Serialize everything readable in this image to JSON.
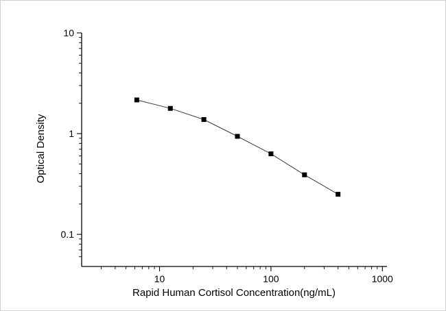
{
  "figure": {
    "background_color": "#ffffff",
    "frame_color": "#cfcfcf"
  },
  "chart_data": {
    "type": "line",
    "title": "",
    "xlabel": "Rapid Human Cortisol Concentration(ng/mL)",
    "ylabel": "Optical Density",
    "xscale": "log",
    "yscale": "log",
    "x": [
      6.25,
      12.5,
      25,
      50,
      100,
      200,
      400
    ],
    "y": [
      2.16,
      1.78,
      1.38,
      0.94,
      0.63,
      0.39,
      0.25
    ],
    "xlim": [
      2,
      1100
    ],
    "ylim": [
      0.048,
      10
    ],
    "x_tick_labels": [
      "10",
      "100",
      "1000"
    ],
    "x_tick_values": [
      10,
      100,
      1000
    ],
    "y_tick_labels": [
      "0.1",
      "1",
      "10"
    ],
    "y_tick_values": [
      0.1,
      1,
      10
    ],
    "marker": "square",
    "marker_color": "#000000",
    "line_color": "#3a3a3a",
    "axis_color": "#000000",
    "grid": false,
    "legend": null
  }
}
